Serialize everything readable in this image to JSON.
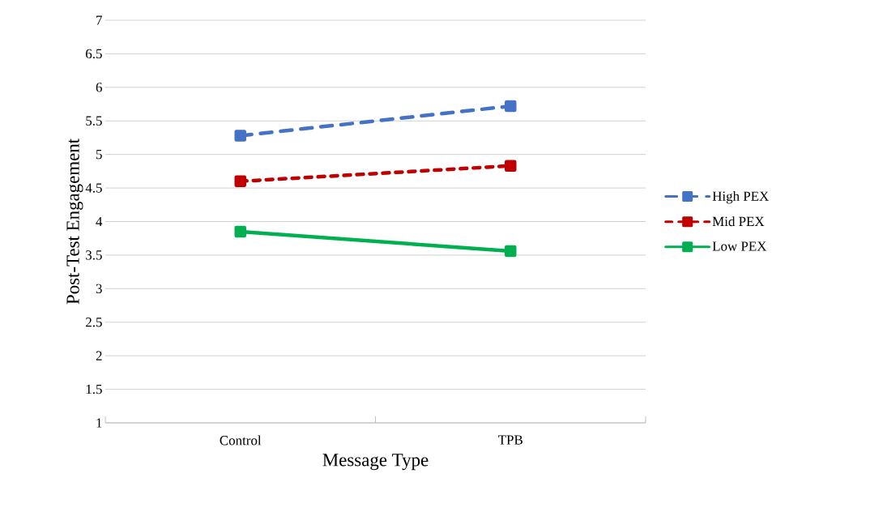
{
  "chart_data": {
    "type": "line",
    "xlabel": "Message Type",
    "ylabel": "Post-Test Engagement",
    "categories": [
      "Control",
      "TPB"
    ],
    "series": [
      {
        "name": "High PEX",
        "color": "#4472c4",
        "values": [
          5.28,
          5.72
        ],
        "line_style": "dashed"
      },
      {
        "name": "Mid PEX",
        "color": "#c00000",
        "values": [
          4.6,
          4.83
        ],
        "line_style": "dotted"
      },
      {
        "name": "Low PEX",
        "color": "#00b050",
        "values": [
          3.85,
          3.56
        ],
        "line_style": "solid"
      }
    ],
    "ylim": [
      1,
      7
    ],
    "yticks": [
      1,
      1.5,
      2,
      2.5,
      3,
      3.5,
      4,
      4.5,
      5,
      5.5,
      6,
      6.5,
      7
    ],
    "grid": "y",
    "legend": "right",
    "marker": "square"
  }
}
